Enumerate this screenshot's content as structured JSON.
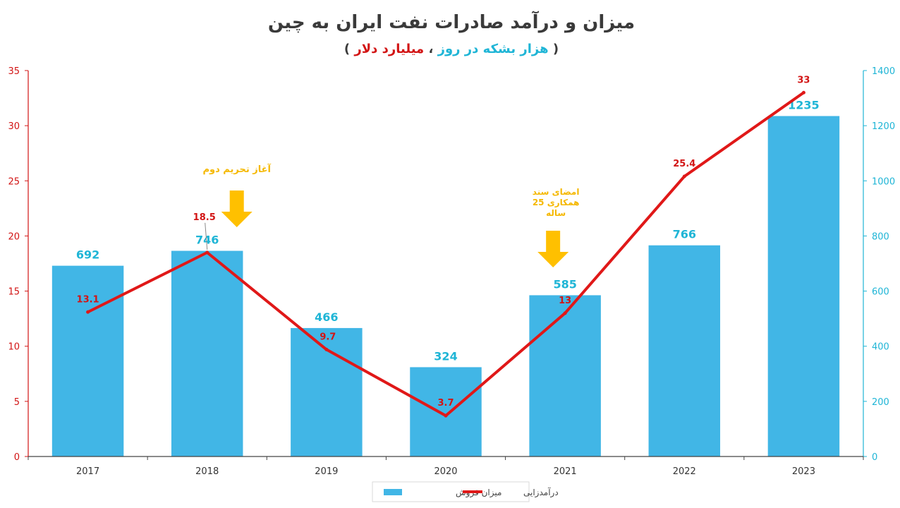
{
  "chart_data": {
    "type": "bar",
    "title": "میزان و درآمد صادرات نفت ایران به چین",
    "subtitle": {
      "open": "(",
      "part1": "هزار بشکه در روز",
      "sep": "، ",
      "part2": "میلیارد دلار",
      "close": ")"
    },
    "categories": [
      "2017",
      "2018",
      "2019",
      "2020",
      "2021",
      "2022",
      "2023"
    ],
    "series": [
      {
        "name": "میزان فروش",
        "kind": "bar",
        "axis": "right",
        "values": [
          692,
          746,
          466,
          324,
          585,
          766,
          1235
        ],
        "labels": [
          "692",
          "746",
          "466",
          "324",
          "585",
          "766",
          "1235"
        ],
        "color": "#41b6e6"
      },
      {
        "name": "درآمدزایی",
        "kind": "line",
        "axis": "left",
        "values": [
          13.1,
          18.5,
          9.7,
          3.7,
          13,
          25.4,
          33
        ],
        "labels": [
          "13.1",
          "18.5",
          "9.7",
          "3.7",
          "13",
          "25.4",
          "33"
        ],
        "color": "#e01818"
      }
    ],
    "y_left": {
      "min": 0,
      "max": 35,
      "ticks": [
        "0",
        "5",
        "10",
        "15",
        "20",
        "25",
        "30",
        "35"
      ],
      "color": "#d21414"
    },
    "y_right": {
      "min": 0,
      "max": 1400,
      "ticks": [
        "0",
        "200",
        "400",
        "600",
        "800",
        "1000",
        "1200",
        "1400"
      ],
      "color": "#1fb5d6"
    },
    "grid": false,
    "legend_position": "bottom",
    "annotations": [
      {
        "category": "2018",
        "text": "آغاز تحریم دوم",
        "color": "#f5b800"
      },
      {
        "category": "2021",
        "lines": [
          "امضای سند",
          "همکاری 25",
          "ساله"
        ],
        "color": "#f5b800"
      }
    ]
  },
  "colors": {
    "title": "#3a3a3a",
    "subtitle_blue": "#1fb5d6",
    "subtitle_red": "#d21414",
    "axis": "#444444",
    "arrow": "#ffc000"
  }
}
